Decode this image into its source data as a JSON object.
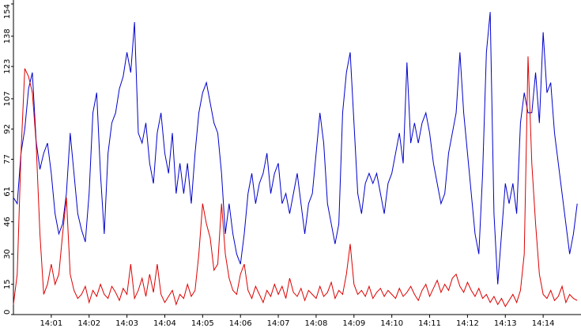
{
  "chart_data": {
    "type": "line",
    "categories": [
      null,
      null,
      null,
      null,
      null,
      null,
      null,
      null,
      null,
      null,
      "14:01",
      null,
      null,
      null,
      null,
      null,
      null,
      null,
      null,
      null,
      "14:02",
      null,
      null,
      null,
      null,
      null,
      null,
      null,
      null,
      null,
      "14:03",
      null,
      null,
      null,
      null,
      null,
      null,
      null,
      null,
      null,
      "14:04",
      null,
      null,
      null,
      null,
      null,
      null,
      null,
      null,
      null,
      "14:05",
      null,
      null,
      null,
      null,
      null,
      null,
      null,
      null,
      null,
      "14:06",
      null,
      null,
      null,
      null,
      null,
      null,
      null,
      null,
      null,
      "14:07",
      null,
      null,
      null,
      null,
      null,
      null,
      null,
      null,
      null,
      "14:08",
      null,
      null,
      null,
      null,
      null,
      null,
      null,
      null,
      null,
      "14:09",
      null,
      null,
      null,
      null,
      null,
      null,
      null,
      null,
      null,
      "14:10",
      null,
      null,
      null,
      null,
      null,
      null,
      null,
      null,
      null,
      "14:11",
      null,
      null,
      null,
      null,
      null,
      null,
      null,
      null,
      null,
      "14:12",
      null,
      null,
      null,
      null,
      null,
      null,
      null,
      null,
      null,
      "14:13",
      null,
      null,
      null,
      null,
      null,
      null,
      null,
      null,
      null,
      "14:14",
      null,
      null,
      null,
      null,
      null,
      null,
      null,
      null,
      null
    ],
    "series": [
      {
        "color": "#0000cc",
        "values": [
          58,
          55,
          80,
          92,
          112,
          120,
          86,
          72,
          80,
          85,
          70,
          50,
          40,
          45,
          60,
          90,
          70,
          50,
          42,
          36,
          60,
          100,
          110,
          70,
          40,
          80,
          95,
          100,
          112,
          118,
          130,
          120,
          145,
          90,
          85,
          95,
          75,
          65,
          90,
          100,
          80,
          70,
          90,
          60,
          75,
          60,
          75,
          55,
          80,
          100,
          110,
          115,
          105,
          95,
          90,
          70,
          40,
          55,
          40,
          30,
          25,
          40,
          60,
          70,
          55,
          65,
          70,
          80,
          60,
          70,
          75,
          55,
          60,
          50,
          60,
          70,
          55,
          40,
          55,
          60,
          80,
          100,
          85,
          55,
          45,
          35,
          45,
          100,
          120,
          130,
          95,
          60,
          50,
          65,
          70,
          65,
          70,
          60,
          50,
          65,
          70,
          80,
          90,
          75,
          125,
          85,
          95,
          85,
          95,
          100,
          90,
          75,
          65,
          55,
          60,
          80,
          90,
          100,
          130,
          100,
          80,
          60,
          40,
          30,
          70,
          130,
          150,
          50,
          15,
          40,
          65,
          55,
          65,
          50,
          95,
          110,
          100,
          100,
          120,
          95,
          140,
          110,
          115,
          90,
          75,
          60,
          45,
          30,
          40,
          55
        ]
      },
      {
        "color": "#dd0000",
        "values": [
          5,
          20,
          80,
          122,
          118,
          110,
          85,
          40,
          10,
          15,
          25,
          15,
          20,
          40,
          58,
          20,
          12,
          8,
          10,
          14,
          6,
          12,
          9,
          15,
          10,
          8,
          14,
          11,
          7,
          13,
          10,
          25,
          8,
          12,
          18,
          9,
          20,
          11,
          25,
          10,
          6,
          9,
          12,
          5,
          10,
          8,
          15,
          9,
          12,
          30,
          55,
          45,
          38,
          22,
          25,
          55,
          30,
          18,
          12,
          10,
          20,
          25,
          12,
          8,
          14,
          10,
          6,
          12,
          9,
          15,
          10,
          14,
          8,
          18,
          11,
          9,
          13,
          7,
          12,
          10,
          8,
          14,
          9,
          11,
          16,
          8,
          12,
          10,
          20,
          35,
          15,
          10,
          12,
          9,
          14,
          8,
          11,
          13,
          9,
          12,
          10,
          8,
          13,
          9,
          11,
          14,
          10,
          7,
          12,
          15,
          9,
          13,
          17,
          11,
          15,
          12,
          18,
          20,
          14,
          11,
          16,
          12,
          9,
          13,
          8,
          10,
          6,
          9,
          5,
          8,
          4,
          7,
          10,
          6,
          12,
          30,
          128,
          75,
          45,
          20,
          10,
          8,
          12,
          7,
          9,
          14,
          6,
          10,
          8,
          7
        ]
      }
    ],
    "ylim": [
      0,
      154
    ],
    "yticks": [
      0,
      15,
      30,
      46,
      61,
      77,
      92,
      107,
      123,
      138,
      154
    ]
  }
}
